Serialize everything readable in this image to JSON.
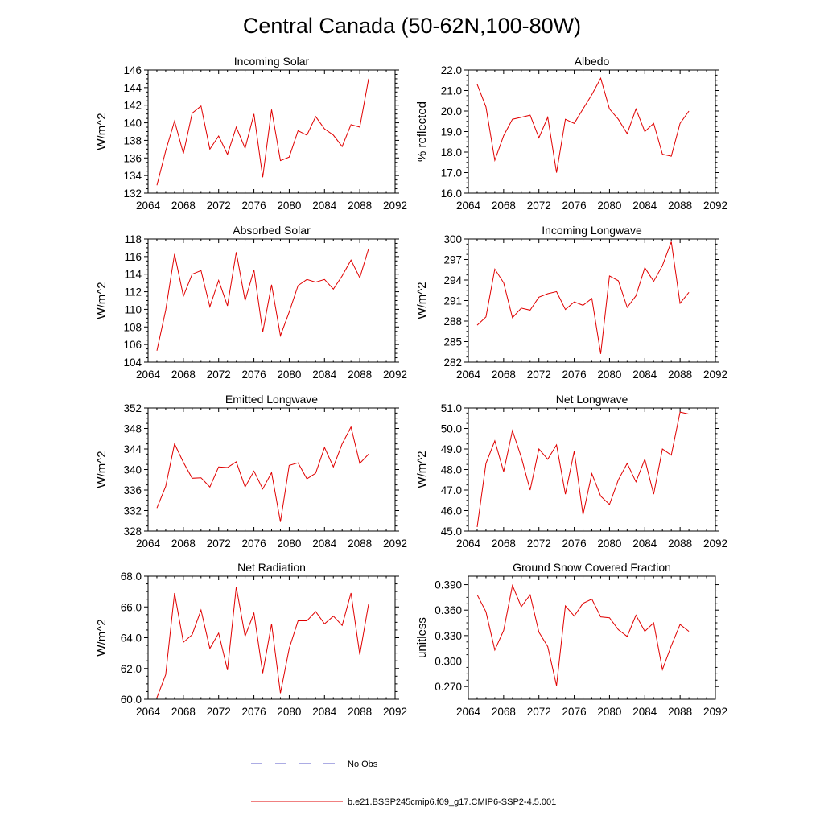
{
  "title": "Central Canada (50-62N,100-80W)",
  "colors": {
    "model_line": "#e00000",
    "obs_line": "#5a5ac8",
    "axis": "#000000"
  },
  "legend": {
    "obs_label": "No Obs",
    "model_label": "b.e21.BSSP245cmip6.f09_g17.CMIP6-SSP2-4.5.001"
  },
  "chart_data": [
    {
      "type": "line",
      "title": "Incoming Solar",
      "xlabel": "",
      "ylabel": "W/m^2",
      "xlim": [
        2064,
        2092
      ],
      "ylim": [
        132,
        146
      ],
      "xticks": [
        2064,
        2068,
        2072,
        2076,
        2080,
        2084,
        2088,
        2092
      ],
      "xtick_labels": [
        "2064",
        "2068",
        "2072",
        "2076",
        "2080",
        "2084",
        "2088",
        "2092"
      ],
      "yticks": [
        132,
        134,
        136,
        138,
        140,
        142,
        144,
        146
      ],
      "ytick_labels": [
        "132",
        "134",
        "136",
        "138",
        "140",
        "142",
        "144",
        "146"
      ],
      "x": [
        2065,
        2066,
        2067,
        2068,
        2069,
        2070,
        2071,
        2072,
        2073,
        2074,
        2075,
        2076,
        2077,
        2078,
        2079,
        2080,
        2081,
        2082,
        2083,
        2084,
        2085,
        2086,
        2087,
        2088,
        2089
      ],
      "series": [
        {
          "values": [
            132.9,
            136.8,
            140.2,
            136.5,
            141.1,
            141.9,
            137.0,
            138.5,
            136.4,
            139.5,
            137.1,
            141.0,
            133.8,
            141.5,
            135.7,
            136.1,
            139.1,
            138.6,
            140.7,
            139.3,
            138.6,
            137.3,
            139.8,
            139.5,
            145.0
          ]
        }
      ]
    },
    {
      "type": "line",
      "title": "Albedo",
      "xlabel": "",
      "ylabel": "% reflected",
      "xlim": [
        2064,
        2092
      ],
      "ylim": [
        16.0,
        22.0
      ],
      "xticks": [
        2064,
        2068,
        2072,
        2076,
        2080,
        2084,
        2088,
        2092
      ],
      "xtick_labels": [
        "2064",
        "2068",
        "2072",
        "2076",
        "2080",
        "2084",
        "2088",
        "2092"
      ],
      "yticks": [
        16,
        17,
        18,
        19,
        20,
        21,
        22
      ],
      "ytick_labels": [
        "16.0",
        "17.0",
        "18.0",
        "19.0",
        "20.0",
        "21.0",
        "22.0"
      ],
      "x": [
        2065,
        2066,
        2067,
        2068,
        2069,
        2070,
        2071,
        2072,
        2073,
        2074,
        2075,
        2076,
        2077,
        2078,
        2079,
        2080,
        2081,
        2082,
        2083,
        2084,
        2085,
        2086,
        2087,
        2088,
        2089
      ],
      "series": [
        {
          "values": [
            21.3,
            20.2,
            17.6,
            18.8,
            19.6,
            19.7,
            19.8,
            18.7,
            19.7,
            17.0,
            19.6,
            19.4,
            20.1,
            20.8,
            21.6,
            20.1,
            19.6,
            18.9,
            20.1,
            19.0,
            19.4,
            17.9,
            17.8,
            19.4,
            20.0
          ]
        }
      ]
    },
    {
      "type": "line",
      "title": "Absorbed Solar",
      "xlabel": "",
      "ylabel": "W/m^2",
      "xlim": [
        2064,
        2092
      ],
      "ylim": [
        104,
        118
      ],
      "xticks": [
        2064,
        2068,
        2072,
        2076,
        2080,
        2084,
        2088,
        2092
      ],
      "xtick_labels": [
        "2064",
        "2068",
        "2072",
        "2076",
        "2080",
        "2084",
        "2088",
        "2092"
      ],
      "yticks": [
        104,
        106,
        108,
        110,
        112,
        114,
        116,
        118
      ],
      "ytick_labels": [
        "104",
        "106",
        "108",
        "110",
        "112",
        "114",
        "116",
        "118"
      ],
      "x": [
        2065,
        2066,
        2067,
        2068,
        2069,
        2070,
        2071,
        2072,
        2073,
        2074,
        2075,
        2076,
        2077,
        2078,
        2079,
        2080,
        2081,
        2082,
        2083,
        2084,
        2085,
        2086,
        2087,
        2088,
        2089
      ],
      "series": [
        {
          "values": [
            105.3,
            109.9,
            116.3,
            111.5,
            114.0,
            114.4,
            110.3,
            113.3,
            110.4,
            116.5,
            111.0,
            114.5,
            107.4,
            112.8,
            107.0,
            109.7,
            112.7,
            113.4,
            113.1,
            113.4,
            112.3,
            113.8,
            115.6,
            113.6,
            116.9
          ]
        }
      ]
    },
    {
      "type": "line",
      "title": "Incoming Longwave",
      "xlabel": "",
      "ylabel": "W/m^2",
      "xlim": [
        2064,
        2092
      ],
      "ylim": [
        282,
        300
      ],
      "xticks": [
        2064,
        2068,
        2072,
        2076,
        2080,
        2084,
        2088,
        2092
      ],
      "xtick_labels": [
        "2064",
        "2068",
        "2072",
        "2076",
        "2080",
        "2084",
        "2088",
        "2092"
      ],
      "yticks": [
        282,
        285,
        288,
        291,
        294,
        297,
        300
      ],
      "ytick_labels": [
        "282",
        "285",
        "288",
        "291",
        "294",
        "297",
        "300"
      ],
      "x": [
        2065,
        2066,
        2067,
        2068,
        2069,
        2070,
        2071,
        2072,
        2073,
        2074,
        2075,
        2076,
        2077,
        2078,
        2079,
        2080,
        2081,
        2082,
        2083,
        2084,
        2085,
        2086,
        2087,
        2088,
        2089
      ],
      "series": [
        {
          "values": [
            287.4,
            288.6,
            295.6,
            293.6,
            288.5,
            289.9,
            289.6,
            291.5,
            292.0,
            292.3,
            289.7,
            290.8,
            290.3,
            291.3,
            283.2,
            294.6,
            293.9,
            290.0,
            291.7,
            295.8,
            293.8,
            296.1,
            299.6,
            290.6,
            292.2
          ]
        }
      ]
    },
    {
      "type": "line",
      "title": "Emitted Longwave",
      "xlabel": "",
      "ylabel": "W/m^2",
      "xlim": [
        2064,
        2092
      ],
      "ylim": [
        328,
        352
      ],
      "xticks": [
        2064,
        2068,
        2072,
        2076,
        2080,
        2084,
        2088,
        2092
      ],
      "xtick_labels": [
        "2064",
        "2068",
        "2072",
        "2076",
        "2080",
        "2084",
        "2088",
        "2092"
      ],
      "yticks": [
        328,
        332,
        336,
        340,
        344,
        348,
        352
      ],
      "ytick_labels": [
        "328",
        "332",
        "336",
        "340",
        "344",
        "348",
        "352"
      ],
      "x": [
        2065,
        2066,
        2067,
        2068,
        2069,
        2070,
        2071,
        2072,
        2073,
        2074,
        2075,
        2076,
        2077,
        2078,
        2079,
        2080,
        2081,
        2082,
        2083,
        2084,
        2085,
        2086,
        2087,
        2088,
        2089
      ],
      "series": [
        {
          "values": [
            332.5,
            336.7,
            345.0,
            341.4,
            338.3,
            338.4,
            336.6,
            340.5,
            340.4,
            341.5,
            336.6,
            339.7,
            336.2,
            339.4,
            329.8,
            340.8,
            341.3,
            338.2,
            339.3,
            344.3,
            340.5,
            345.0,
            348.3,
            341.2,
            343.0
          ]
        }
      ]
    },
    {
      "type": "line",
      "title": "Net Longwave",
      "xlabel": "",
      "ylabel": "W/m^2",
      "xlim": [
        2064,
        2092
      ],
      "ylim": [
        45.0,
        51.0
      ],
      "xticks": [
        2064,
        2068,
        2072,
        2076,
        2080,
        2084,
        2088,
        2092
      ],
      "xtick_labels": [
        "2064",
        "2068",
        "2072",
        "2076",
        "2080",
        "2084",
        "2088",
        "2092"
      ],
      "yticks": [
        45,
        46,
        47,
        48,
        49,
        50,
        51
      ],
      "ytick_labels": [
        "45.0",
        "46.0",
        "47.0",
        "48.0",
        "49.0",
        "50.0",
        "51.0"
      ],
      "x": [
        2065,
        2066,
        2067,
        2068,
        2069,
        2070,
        2071,
        2072,
        2073,
        2074,
        2075,
        2076,
        2077,
        2078,
        2079,
        2080,
        2081,
        2082,
        2083,
        2084,
        2085,
        2086,
        2087,
        2088,
        2089
      ],
      "series": [
        {
          "values": [
            45.2,
            48.3,
            49.4,
            47.9,
            49.9,
            48.6,
            47.0,
            49.0,
            48.5,
            49.2,
            46.8,
            48.9,
            45.8,
            47.8,
            46.7,
            46.3,
            47.5,
            48.3,
            47.4,
            48.5,
            46.8,
            49.0,
            48.7,
            50.8,
            50.7
          ]
        }
      ]
    },
    {
      "type": "line",
      "title": "Net Radiation",
      "xlabel": "",
      "ylabel": "W/m^2",
      "xlim": [
        2064,
        2092
      ],
      "ylim": [
        60.0,
        68.0
      ],
      "xticks": [
        2064,
        2068,
        2072,
        2076,
        2080,
        2084,
        2088,
        2092
      ],
      "xtick_labels": [
        "2064",
        "2068",
        "2072",
        "2076",
        "2080",
        "2084",
        "2088",
        "2092"
      ],
      "yticks": [
        60,
        62,
        64,
        66,
        68
      ],
      "ytick_labels": [
        "60.0",
        "62.0",
        "64.0",
        "66.0",
        "68.0"
      ],
      "x": [
        2065,
        2066,
        2067,
        2068,
        2069,
        2070,
        2071,
        2072,
        2073,
        2074,
        2075,
        2076,
        2077,
        2078,
        2079,
        2080,
        2081,
        2082,
        2083,
        2084,
        2085,
        2086,
        2087,
        2088,
        2089
      ],
      "series": [
        {
          "values": [
            60.1,
            61.6,
            66.9,
            63.7,
            64.2,
            65.8,
            63.3,
            64.3,
            61.9,
            67.3,
            64.1,
            65.6,
            61.7,
            64.9,
            60.4,
            63.3,
            65.1,
            65.1,
            65.7,
            64.9,
            65.4,
            64.8,
            66.9,
            62.9,
            66.2
          ]
        }
      ]
    },
    {
      "type": "line",
      "title": "Ground Snow Covered Fraction",
      "xlabel": "",
      "ylabel": "unitless",
      "xlim": [
        2064,
        2092
      ],
      "ylim": [
        0.255,
        0.4
      ],
      "xticks": [
        2064,
        2068,
        2072,
        2076,
        2080,
        2084,
        2088,
        2092
      ],
      "xtick_labels": [
        "2064",
        "2068",
        "2072",
        "2076",
        "2080",
        "2084",
        "2088",
        "2092"
      ],
      "yticks": [
        0.27,
        0.3,
        0.33,
        0.36,
        0.39
      ],
      "ytick_labels": [
        "0.270",
        "0.300",
        "0.330",
        "0.360",
        "0.390"
      ],
      "x": [
        2065,
        2066,
        2067,
        2068,
        2069,
        2070,
        2071,
        2072,
        2073,
        2074,
        2075,
        2076,
        2077,
        2078,
        2079,
        2080,
        2081,
        2082,
        2083,
        2084,
        2085,
        2086,
        2087,
        2088,
        2089
      ],
      "series": [
        {
          "values": [
            0.378,
            0.358,
            0.313,
            0.336,
            0.389,
            0.364,
            0.378,
            0.334,
            0.317,
            0.271,
            0.365,
            0.353,
            0.368,
            0.373,
            0.352,
            0.351,
            0.337,
            0.329,
            0.354,
            0.335,
            0.345,
            0.29,
            0.318,
            0.343,
            0.335
          ]
        }
      ]
    }
  ]
}
